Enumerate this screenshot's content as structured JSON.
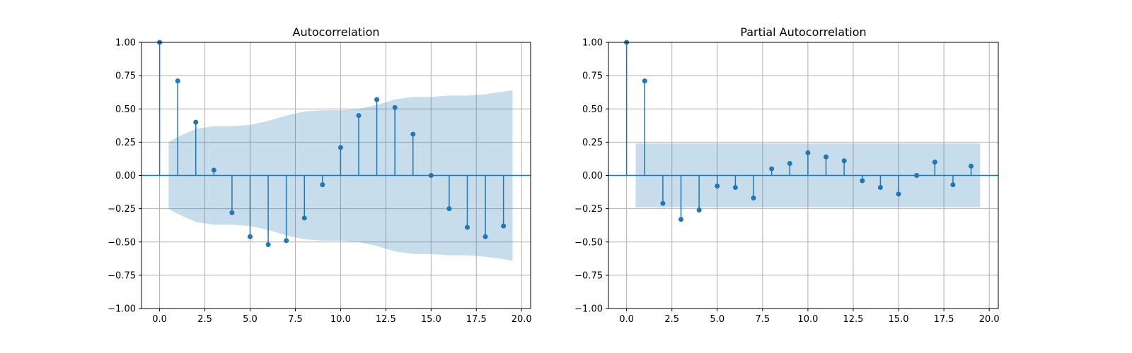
{
  "colors": {
    "stem": "#1f77b4",
    "confidence_band": "#1f77b4",
    "grid": "#b0b0b0",
    "zero_line": "#1f77b4"
  },
  "chart_data": [
    {
      "type": "stem",
      "title": "Autocorrelation",
      "xlabel": "",
      "ylabel": "",
      "xlim": [
        -1,
        20.5
      ],
      "ylim": [
        -1.0,
        1.0
      ],
      "xticks": [
        0.0,
        2.5,
        5.0,
        7.5,
        10.0,
        12.5,
        15.0,
        17.5,
        20.0
      ],
      "xtick_labels": [
        "0.0",
        "2.5",
        "5.0",
        "7.5",
        "10.0",
        "12.5",
        "15.0",
        "17.5",
        "20.0"
      ],
      "yticks": [
        -1.0,
        -0.75,
        -0.5,
        -0.25,
        0.0,
        0.25,
        0.5,
        0.75,
        1.0
      ],
      "ytick_labels": [
        "−1.00",
        "−0.75",
        "−0.50",
        "−0.25",
        "0.00",
        "0.25",
        "0.50",
        "0.75",
        "1.00"
      ],
      "grid": true,
      "x": [
        0,
        1,
        2,
        3,
        4,
        5,
        6,
        7,
        8,
        9,
        10,
        11,
        12,
        13,
        14,
        15,
        16,
        17,
        18,
        19
      ],
      "values": [
        1.0,
        0.71,
        0.4,
        0.04,
        -0.28,
        -0.46,
        -0.52,
        -0.49,
        -0.32,
        -0.07,
        0.21,
        0.45,
        0.57,
        0.51,
        0.31,
        0.0,
        -0.25,
        -0.39,
        -0.46,
        -0.38
      ],
      "confidence_band": {
        "x": [
          0.5,
          1,
          2,
          3,
          4,
          5,
          6,
          7,
          8,
          9,
          10,
          11,
          12,
          13,
          14,
          15,
          16,
          17,
          18,
          19,
          19.5
        ],
        "upper": [
          0.25,
          0.29,
          0.35,
          0.37,
          0.37,
          0.38,
          0.41,
          0.45,
          0.48,
          0.49,
          0.49,
          0.5,
          0.53,
          0.57,
          0.59,
          0.59,
          0.6,
          0.6,
          0.61,
          0.63,
          0.64
        ],
        "lower": [
          -0.25,
          -0.29,
          -0.35,
          -0.37,
          -0.37,
          -0.38,
          -0.41,
          -0.45,
          -0.48,
          -0.49,
          -0.49,
          -0.5,
          -0.53,
          -0.57,
          -0.59,
          -0.59,
          -0.6,
          -0.6,
          -0.61,
          -0.63,
          -0.64
        ]
      }
    },
    {
      "type": "stem",
      "title": "Partial Autocorrelation",
      "xlabel": "",
      "ylabel": "",
      "xlim": [
        -1,
        20.5
      ],
      "ylim": [
        -1.0,
        1.0
      ],
      "xticks": [
        0.0,
        2.5,
        5.0,
        7.5,
        10.0,
        12.5,
        15.0,
        17.5,
        20.0
      ],
      "xtick_labels": [
        "0.0",
        "2.5",
        "5.0",
        "7.5",
        "10.0",
        "12.5",
        "15.0",
        "17.5",
        "20.0"
      ],
      "yticks": [
        -1.0,
        -0.75,
        -0.5,
        -0.25,
        0.0,
        0.25,
        0.5,
        0.75,
        1.0
      ],
      "ytick_labels": [
        "−1.00",
        "−0.75",
        "−0.50",
        "−0.25",
        "0.00",
        "0.25",
        "0.50",
        "0.75",
        "1.00"
      ],
      "grid": true,
      "x": [
        0,
        1,
        2,
        3,
        4,
        5,
        6,
        7,
        8,
        9,
        10,
        11,
        12,
        13,
        14,
        15,
        16,
        17,
        18,
        19
      ],
      "values": [
        1.0,
        0.71,
        -0.21,
        -0.33,
        -0.26,
        -0.08,
        -0.09,
        -0.17,
        0.05,
        0.09,
        0.17,
        0.14,
        0.11,
        -0.04,
        -0.09,
        -0.14,
        0.0,
        0.1,
        -0.07,
        0.07
      ],
      "confidence_band": {
        "x": [
          0.5,
          19.5
        ],
        "upper": [
          0.24,
          0.24
        ],
        "lower": [
          -0.24,
          -0.24
        ]
      }
    }
  ]
}
